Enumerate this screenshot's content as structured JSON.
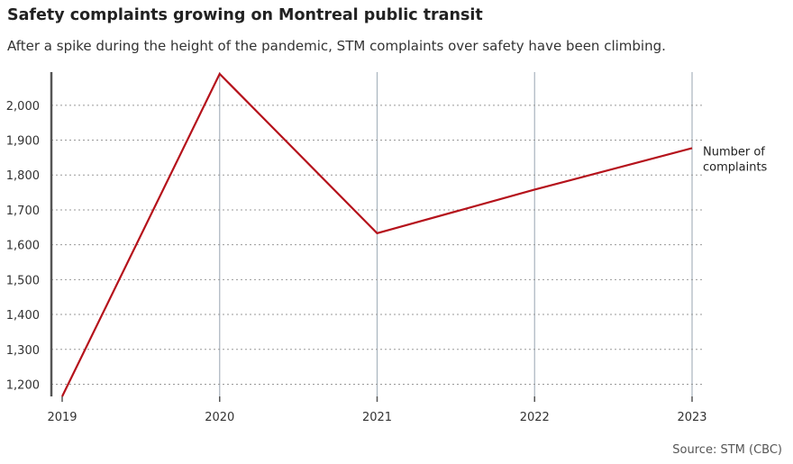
{
  "header": {
    "title": "Safety complaints growing on Montreal public transit",
    "subtitle": "After a spike during the height of the pandemic, STM complaints over safety have been climbing."
  },
  "footer": {
    "source": "Source: STM (CBC)"
  },
  "colors": {
    "line": "#b5121b",
    "grid_h": "#999999",
    "grid_v": "#a9b4bf",
    "axis": "#555555",
    "text": "#333333"
  },
  "chart_data": {
    "type": "line",
    "title": "Safety complaints growing on Montreal public transit",
    "subtitle": "After a spike during the height of the pandemic, STM complaints over safety have been climbing.",
    "xlabel": "",
    "ylabel": "",
    "x": [
      "2019",
      "2020",
      "2021",
      "2022",
      "2023"
    ],
    "series": [
      {
        "name": "Number of complaints",
        "values": [
          1165,
          2090,
          1633,
          1758,
          1877
        ]
      }
    ],
    "ylim": [
      1165,
      2090
    ],
    "yticks": [
      1200,
      1300,
      1400,
      1500,
      1600,
      1700,
      1800,
      1900,
      2000
    ],
    "ytick_labels": [
      "1,200",
      "1,300",
      "1,400",
      "1,500",
      "1,600",
      "1,700",
      "1,800",
      "1,900",
      "2,000"
    ],
    "grid": true,
    "legend": "inline label at end of line",
    "source": "Source: STM (CBC)"
  }
}
